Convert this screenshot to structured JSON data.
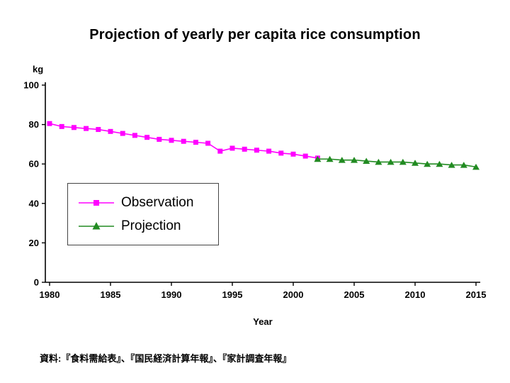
{
  "chart_data": {
    "type": "line",
    "title": "Projection of yearly per capita rice consumption",
    "xlabel": "Year",
    "ylabel": "kg",
    "xlim": [
      1980,
      2015
    ],
    "ylim": [
      0,
      100
    ],
    "xticks": [
      1980,
      1985,
      1990,
      1995,
      2000,
      2005,
      2010,
      2015
    ],
    "yticks": [
      0,
      20,
      40,
      60,
      80,
      100
    ],
    "grid": false,
    "legend_position": "inside-left",
    "axis_color": "#000000",
    "background": "#FFFFFF",
    "series": [
      {
        "name": "Observation",
        "color": "#FF00FF",
        "marker": "square",
        "x": [
          1980,
          1981,
          1982,
          1983,
          1984,
          1985,
          1986,
          1987,
          1988,
          1989,
          1990,
          1991,
          1992,
          1993,
          1994,
          1995,
          1996,
          1997,
          1998,
          1999,
          2000,
          2001,
          2002
        ],
        "y": [
          80.5,
          79,
          78.5,
          78,
          77.5,
          76.5,
          75.5,
          74.5,
          73.5,
          72.5,
          72,
          71.5,
          71,
          70.5,
          66.5,
          68,
          67.5,
          67,
          66.5,
          65.5,
          65,
          64,
          63
        ]
      },
      {
        "name": "Projection",
        "color": "#228B22",
        "marker": "triangle-up",
        "x": [
          2002,
          2003,
          2004,
          2005,
          2006,
          2007,
          2008,
          2009,
          2010,
          2011,
          2012,
          2013,
          2014,
          2015
        ],
        "y": [
          62.5,
          62.5,
          62,
          62,
          61.5,
          61,
          61,
          61,
          60.5,
          60,
          60,
          59.5,
          59.5,
          58.5
        ]
      }
    ]
  },
  "source_note": "資料:『食料需給表』、『国民経済計算年報』、『家計調査年報』"
}
